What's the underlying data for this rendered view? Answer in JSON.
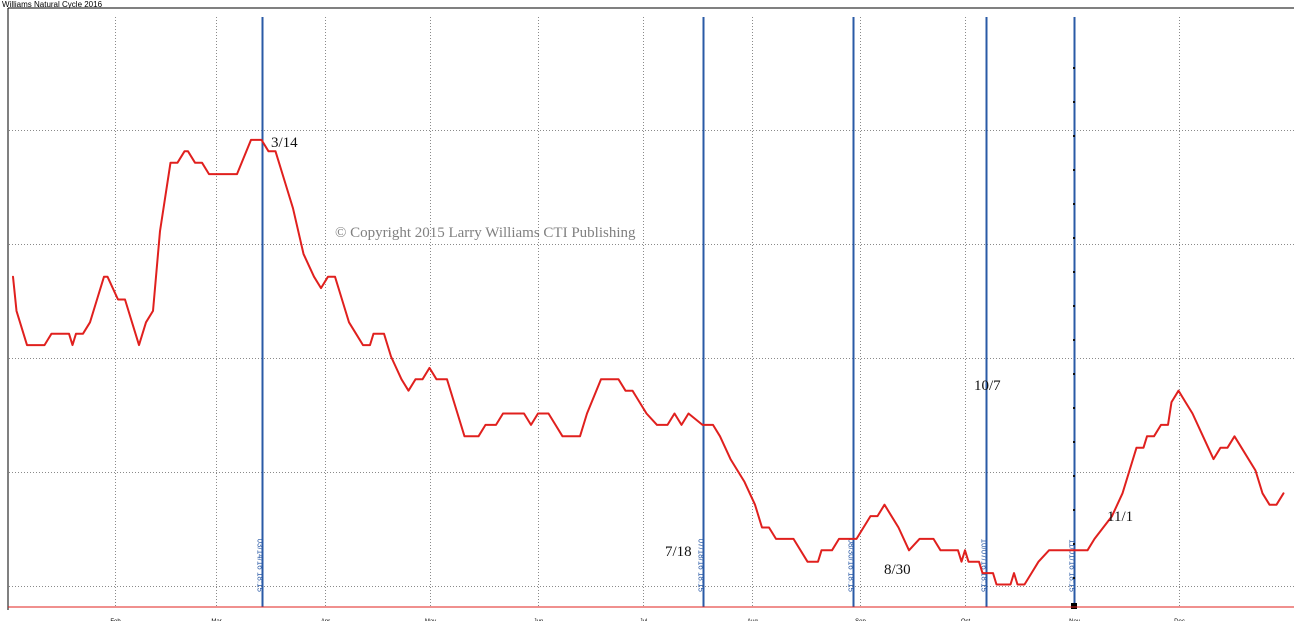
{
  "chart_data": {
    "type": "line",
    "title": "Williams Natural Cycle 2016",
    "x_axis": {
      "type": "date",
      "range": [
        "2016-01-01",
        "2016-12-31"
      ],
      "tick_labels": [
        {
          "label": "Feb",
          "date": "2016-02-01"
        },
        {
          "label": "Mar",
          "date": "2016-03-01"
        },
        {
          "label": "Apr",
          "date": "2016-04-01"
        },
        {
          "label": "May",
          "date": "2016-05-01"
        },
        {
          "label": "Jun",
          "date": "2016-06-01"
        },
        {
          "label": "Jul",
          "date": "2016-07-01"
        },
        {
          "label": "Aug",
          "date": "2016-08-01"
        },
        {
          "label": "Sep",
          "date": "2016-09-01"
        },
        {
          "label": "Oct",
          "date": "2016-10-01"
        },
        {
          "label": "Nov",
          "date": "2016-11-01"
        },
        {
          "label": "Dec",
          "date": "2016-12-01"
        }
      ]
    },
    "y_axis": {
      "range": [
        0,
        5.3
      ],
      "grid_levels": [
        0.1,
        1.1,
        2.1,
        3.1,
        4.1
      ]
    },
    "grid": true,
    "series": [
      {
        "color": "#e0201e",
        "points": [
          [
            "2016-01-03",
            2.81
          ],
          [
            "2016-01-04",
            2.51
          ],
          [
            "2016-01-05",
            2.41
          ],
          [
            "2016-01-06",
            2.31
          ],
          [
            "2016-01-07",
            2.21
          ],
          [
            "2016-01-12",
            2.21
          ],
          [
            "2016-01-13",
            2.26
          ],
          [
            "2016-01-14",
            2.31
          ],
          [
            "2016-01-19",
            2.31
          ],
          [
            "2016-01-20",
            2.21
          ],
          [
            "2016-01-21",
            2.31
          ],
          [
            "2016-01-23",
            2.31
          ],
          [
            "2016-01-25",
            2.41
          ],
          [
            "2016-01-27",
            2.61
          ],
          [
            "2016-01-29",
            2.81
          ],
          [
            "2016-01-30",
            2.81
          ],
          [
            "2016-02-02",
            2.61
          ],
          [
            "2016-02-04",
            2.61
          ],
          [
            "2016-02-06",
            2.41
          ],
          [
            "2016-02-08",
            2.21
          ],
          [
            "2016-02-10",
            2.41
          ],
          [
            "2016-02-12",
            2.51
          ],
          [
            "2016-02-14",
            3.21
          ],
          [
            "2016-02-17",
            3.81
          ],
          [
            "2016-02-19",
            3.81
          ],
          [
            "2016-02-21",
            3.91
          ],
          [
            "2016-02-22",
            3.91
          ],
          [
            "2016-02-24",
            3.81
          ],
          [
            "2016-02-26",
            3.81
          ],
          [
            "2016-02-28",
            3.71
          ],
          [
            "2016-03-07",
            3.71
          ],
          [
            "2016-03-11",
            4.01
          ],
          [
            "2016-03-14",
            4.01
          ],
          [
            "2016-03-16",
            3.91
          ],
          [
            "2016-03-18",
            3.91
          ],
          [
            "2016-03-19",
            3.81
          ],
          [
            "2016-03-21",
            3.61
          ],
          [
            "2016-03-23",
            3.41
          ],
          [
            "2016-03-26",
            3.01
          ],
          [
            "2016-03-29",
            2.81
          ],
          [
            "2016-03-31",
            2.71
          ],
          [
            "2016-04-02",
            2.81
          ],
          [
            "2016-04-04",
            2.81
          ],
          [
            "2016-04-06",
            2.61
          ],
          [
            "2016-04-08",
            2.41
          ],
          [
            "2016-04-10",
            2.31
          ],
          [
            "2016-04-12",
            2.21
          ],
          [
            "2016-04-14",
            2.21
          ],
          [
            "2016-04-15",
            2.31
          ],
          [
            "2016-04-18",
            2.31
          ],
          [
            "2016-04-20",
            2.11
          ],
          [
            "2016-04-23",
            1.91
          ],
          [
            "2016-04-25",
            1.81
          ],
          [
            "2016-04-27",
            1.91
          ],
          [
            "2016-04-29",
            1.91
          ],
          [
            "2016-05-01",
            2.01
          ],
          [
            "2016-05-03",
            1.91
          ],
          [
            "2016-05-06",
            1.91
          ],
          [
            "2016-05-07",
            1.81
          ],
          [
            "2016-05-09",
            1.61
          ],
          [
            "2016-05-11",
            1.41
          ],
          [
            "2016-05-15",
            1.41
          ],
          [
            "2016-05-17",
            1.51
          ],
          [
            "2016-05-20",
            1.51
          ],
          [
            "2016-05-22",
            1.61
          ],
          [
            "2016-05-28",
            1.61
          ],
          [
            "2016-05-30",
            1.51
          ],
          [
            "2016-06-01",
            1.61
          ],
          [
            "2016-06-04",
            1.61
          ],
          [
            "2016-06-06",
            1.51
          ],
          [
            "2016-06-08",
            1.41
          ],
          [
            "2016-06-13",
            1.41
          ],
          [
            "2016-06-15",
            1.61
          ],
          [
            "2016-06-19",
            1.91
          ],
          [
            "2016-06-24",
            1.91
          ],
          [
            "2016-06-26",
            1.81
          ],
          [
            "2016-06-28",
            1.81
          ],
          [
            "2016-07-02",
            1.61
          ],
          [
            "2016-07-05",
            1.51
          ],
          [
            "2016-07-08",
            1.51
          ],
          [
            "2016-07-10",
            1.61
          ],
          [
            "2016-07-12",
            1.51
          ],
          [
            "2016-07-14",
            1.61
          ],
          [
            "2016-07-18",
            1.51
          ],
          [
            "2016-07-21",
            1.51
          ],
          [
            "2016-07-23",
            1.41
          ],
          [
            "2016-07-26",
            1.21
          ],
          [
            "2016-07-30",
            1.01
          ],
          [
            "2016-08-02",
            0.81
          ],
          [
            "2016-08-04",
            0.61
          ],
          [
            "2016-08-06",
            0.61
          ],
          [
            "2016-08-08",
            0.51
          ],
          [
            "2016-08-13",
            0.51
          ],
          [
            "2016-08-17",
            0.31
          ],
          [
            "2016-08-20",
            0.31
          ],
          [
            "2016-08-21",
            0.41
          ],
          [
            "2016-08-24",
            0.41
          ],
          [
            "2016-08-26",
            0.51
          ],
          [
            "2016-08-31",
            0.51
          ],
          [
            "2016-09-04",
            0.71
          ],
          [
            "2016-09-06",
            0.71
          ],
          [
            "2016-09-08",
            0.81
          ],
          [
            "2016-09-12",
            0.61
          ],
          [
            "2016-09-15",
            0.41
          ],
          [
            "2016-09-18",
            0.51
          ],
          [
            "2016-09-22",
            0.51
          ],
          [
            "2016-09-24",
            0.41
          ],
          [
            "2016-09-29",
            0.41
          ],
          [
            "2016-09-30",
            0.31
          ],
          [
            "2016-10-01",
            0.41
          ],
          [
            "2016-10-02",
            0.31
          ],
          [
            "2016-10-05",
            0.31
          ],
          [
            "2016-10-06",
            0.21
          ],
          [
            "2016-10-09",
            0.21
          ],
          [
            "2016-10-10",
            0.11
          ],
          [
            "2016-10-14",
            0.11
          ],
          [
            "2016-10-15",
            0.21
          ],
          [
            "2016-10-16",
            0.11
          ],
          [
            "2016-10-18",
            0.11
          ],
          [
            "2016-10-20",
            0.21
          ],
          [
            "2016-10-22",
            0.31
          ],
          [
            "2016-10-25",
            0.41
          ],
          [
            "2016-10-29",
            0.41
          ],
          [
            "2016-11-05",
            0.41
          ],
          [
            "2016-11-07",
            0.51
          ],
          [
            "2016-11-12",
            0.71
          ],
          [
            "2016-11-15",
            0.91
          ],
          [
            "2016-11-17",
            1.11
          ],
          [
            "2016-11-19",
            1.31
          ],
          [
            "2016-11-21",
            1.31
          ],
          [
            "2016-11-22",
            1.41
          ],
          [
            "2016-11-24",
            1.41
          ],
          [
            "2016-11-26",
            1.51
          ],
          [
            "2016-11-28",
            1.51
          ],
          [
            "2016-11-29",
            1.71
          ],
          [
            "2016-12-01",
            1.81
          ],
          [
            "2016-12-03",
            1.71
          ],
          [
            "2016-12-05",
            1.61
          ],
          [
            "2016-12-08",
            1.41
          ],
          [
            "2016-12-11",
            1.21
          ],
          [
            "2016-12-13",
            1.31
          ],
          [
            "2016-12-15",
            1.31
          ],
          [
            "2016-12-17",
            1.41
          ],
          [
            "2016-12-19",
            1.31
          ],
          [
            "2016-12-23",
            1.11
          ],
          [
            "2016-12-25",
            0.91
          ],
          [
            "2016-12-27",
            0.81
          ],
          [
            "2016-12-29",
            0.81
          ],
          [
            "2016-12-31",
            0.91
          ]
        ]
      }
    ],
    "annotations": [
      "3/14",
      "7/18",
      "8/30",
      "10/7",
      "11/1"
    ],
    "turn_dates": [
      {
        "date": "2016-03-14",
        "label": "03/14/16 18:15"
      },
      {
        "date": "2016-07-18",
        "label": "07/18/16 18:15"
      },
      {
        "date": "2016-08-30",
        "label": "08/30/16 18:15"
      },
      {
        "date": "2016-10-07",
        "label": "10/07/16 18:15"
      },
      {
        "date": "2016-11-01",
        "label": "11/01/16 18:15"
      }
    ],
    "watermark": "© Copyright 2015 Larry Williams CTI Publishing",
    "colors": {
      "line": "#e0201e",
      "turn_lines": "#2a5aa6",
      "grid": "#808080"
    }
  }
}
